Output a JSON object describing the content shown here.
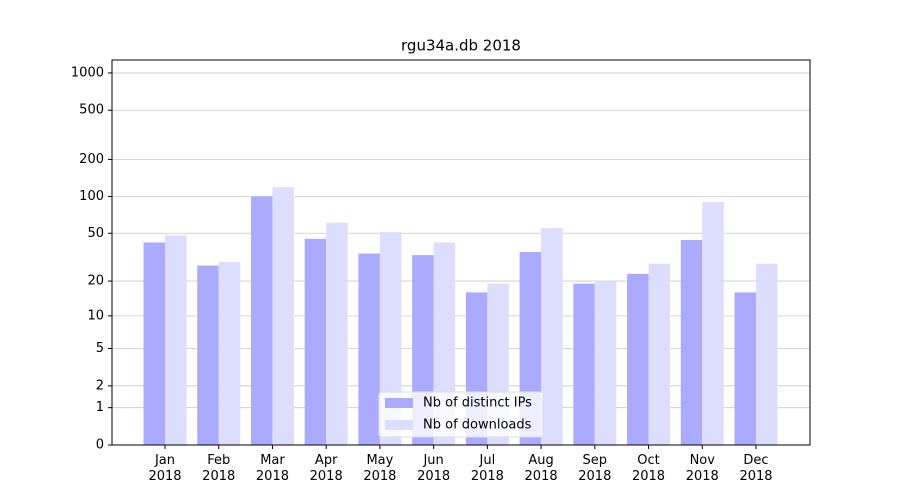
{
  "chart_data": {
    "type": "bar",
    "title": "rgu34a.db 2018",
    "categories": [
      "Jan\n2018",
      "Feb\n2018",
      "Mar\n2018",
      "Apr\n2018",
      "May\n2018",
      "Jun\n2018",
      "Jul\n2018",
      "Aug\n2018",
      "Sep\n2018",
      "Oct\n2018",
      "Nov\n2018",
      "Dec\n2018"
    ],
    "series": [
      {
        "name": "Nb of distinct IPs",
        "color": "#aaaaff",
        "values": [
          42,
          27,
          100,
          45,
          34,
          33,
          16,
          35,
          19,
          23,
          44,
          16
        ]
      },
      {
        "name": "Nb of downloads",
        "color": "#ddddff",
        "values": [
          48,
          29,
          119,
          61,
          51,
          42,
          19,
          55,
          20,
          28,
          90,
          28
        ]
      }
    ],
    "yscale": "log1p",
    "ylim": [
      0,
      1272
    ],
    "yticks": [
      0,
      1,
      2,
      5,
      10,
      20,
      50,
      100,
      200,
      500,
      1000
    ],
    "grid": true,
    "legend": "lower center"
  }
}
